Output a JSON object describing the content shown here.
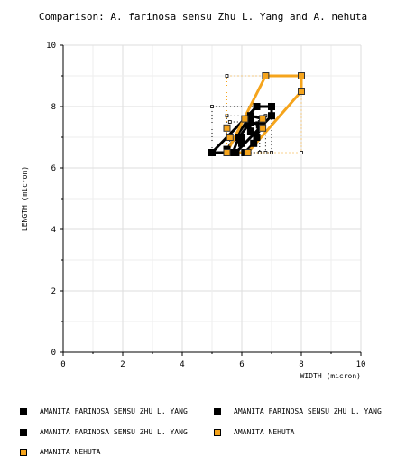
{
  "chart_data": {
    "type": "scatter",
    "title": "Comparison: A. farinosa sensu Zhu L. Yang and A. nehuta",
    "xlabel": "WIDTH (micron)",
    "ylabel": "LENGTH (micron)",
    "xlim": [
      0,
      10
    ],
    "ylim": [
      0,
      10
    ],
    "x_ticks": [
      "0",
      "2",
      "4",
      "6",
      "8",
      "10"
    ],
    "y_ticks": [
      "0",
      "2",
      "4",
      "6",
      "8",
      "10"
    ],
    "grid": true,
    "legend_position": "bottom",
    "series": [
      {
        "name": "AMANITA FARINOSA SENSU ZHU L. YANG",
        "color": "#000000",
        "box": {
          "x": [
            5.0,
            7.0
          ],
          "y": [
            6.5,
            8.0
          ]
        },
        "hull": [
          [
            5.0,
            6.5
          ],
          [
            6.5,
            8.0
          ],
          [
            7.0,
            8.0
          ],
          [
            7.0,
            7.7
          ],
          [
            5.8,
            6.5
          ]
        ],
        "points": [
          [
            5.0,
            6.5
          ],
          [
            5.8,
            6.5
          ],
          [
            6.0,
            7.0
          ],
          [
            6.3,
            7.2
          ],
          [
            6.5,
            8.0
          ],
          [
            7.0,
            8.0
          ],
          [
            7.0,
            7.7
          ]
        ]
      },
      {
        "name": "AMANITA FARINOSA SENSU ZHU L. YANG",
        "color": "#000000",
        "box": {
          "x": [
            5.5,
            6.8
          ],
          "y": [
            6.5,
            7.7
          ]
        },
        "hull": [
          [
            5.5,
            6.6
          ],
          [
            6.3,
            7.7
          ],
          [
            6.7,
            7.6
          ],
          [
            6.5,
            7.0
          ],
          [
            6.2,
            6.5
          ],
          [
            5.8,
            6.5
          ]
        ],
        "points": [
          [
            5.5,
            6.6
          ],
          [
            5.8,
            6.5
          ],
          [
            6.0,
            6.8
          ],
          [
            6.2,
            7.4
          ],
          [
            6.3,
            7.7
          ],
          [
            6.7,
            7.6
          ],
          [
            6.5,
            7.0
          ]
        ]
      },
      {
        "name": "AMANITA FARINOSA SENSU ZHU L. YANG",
        "color": "#000000",
        "box": {
          "x": [
            5.6,
            6.6
          ],
          "y": [
            6.5,
            7.5
          ]
        },
        "hull": [
          [
            5.7,
            6.5
          ],
          [
            5.9,
            7.0
          ],
          [
            6.3,
            7.5
          ],
          [
            6.6,
            7.4
          ],
          [
            6.4,
            6.8
          ],
          [
            6.1,
            6.5
          ]
        ],
        "points": [
          [
            5.7,
            6.5
          ],
          [
            5.9,
            7.0
          ],
          [
            6.3,
            7.5
          ],
          [
            6.6,
            7.4
          ],
          [
            6.4,
            6.8
          ],
          [
            6.1,
            6.5
          ]
        ]
      },
      {
        "name": "AMANITA NEHUTA",
        "color": "#f5a41c",
        "box": {
          "x": [
            5.5,
            8.0
          ],
          "y": [
            6.5,
            9.0
          ]
        },
        "hull": [
          [
            5.5,
            6.5
          ],
          [
            6.8,
            9.0
          ],
          [
            8.0,
            9.0
          ],
          [
            8.0,
            8.5
          ],
          [
            6.2,
            6.5
          ]
        ],
        "points": [
          [
            5.5,
            6.5
          ],
          [
            5.5,
            7.3
          ],
          [
            5.6,
            7.0
          ],
          [
            6.1,
            7.6
          ],
          [
            6.2,
            6.5
          ],
          [
            6.7,
            7.6
          ],
          [
            6.7,
            7.3
          ],
          [
            6.8,
            9.0
          ],
          [
            8.0,
            9.0
          ],
          [
            8.0,
            8.5
          ]
        ]
      }
    ],
    "legend": [
      {
        "label": "AMANITA FARINOSA SENSU ZHU L. YANG",
        "color": "#000000"
      },
      {
        "label": "AMANITA FARINOSA SENSU ZHU L. YANG",
        "color": "#000000"
      },
      {
        "label": "AMANITA FARINOSA SENSU ZHU L. YANG",
        "color": "#000000"
      },
      {
        "label": "AMANITA NEHUTA",
        "color": "#f5a41c"
      }
    ]
  }
}
